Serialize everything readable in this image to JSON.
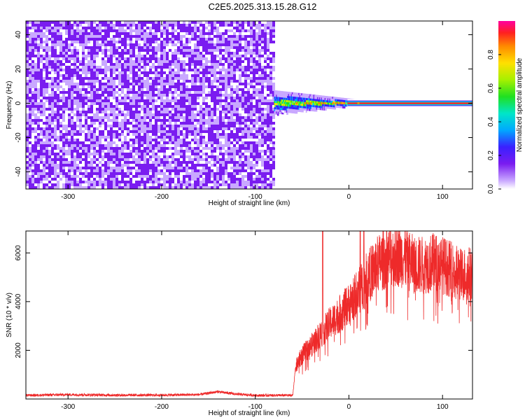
{
  "title": "C2E5.2025.313.15.28.G12",
  "colors": {
    "snr_line": "#ee2a2a",
    "frame": "#000000"
  },
  "chart_data": [
    {
      "type": "heatmap",
      "xlabel": "Height of straight line (km)",
      "ylabel": "Frequency (Hz)",
      "xlim": [
        -345,
        132
      ],
      "ylim": [
        -50,
        48
      ],
      "xticks": [
        -300,
        -200,
        -100,
        0,
        100
      ],
      "yticks": [
        -40,
        -20,
        0,
        20,
        40
      ],
      "colorbar": {
        "label": "Normalized spectral amplitude",
        "range": [
          0,
          1
        ],
        "ticks": [
          0.0,
          0.2,
          0.4,
          0.6,
          0.8
        ]
      },
      "regions": [
        {
          "x": [
            -345,
            -80
          ],
          "description_level": 0.12
        },
        {
          "x": [
            -80,
            15
          ],
          "description_level": 0.5
        },
        {
          "x": [
            0,
            132
          ],
          "y": 0,
          "description_level": 0.9
        }
      ]
    },
    {
      "type": "line",
      "xlabel": "Height of straight line (km)",
      "ylabel": "SNR (10 * v/v)",
      "xlim": [
        -345,
        132
      ],
      "ylim": [
        0,
        6900
      ],
      "xticks": [
        -300,
        -200,
        -100,
        0,
        100
      ],
      "yticks": [
        2000,
        4000,
        6000
      ],
      "series": [
        {
          "x": [
            -345,
            -300,
            -250,
            -200,
            -160,
            -140,
            -120,
            -100,
            -60,
            -57,
            -50,
            -40,
            -30,
            -20,
            -10,
            0,
            10,
            20,
            30,
            40,
            50,
            60,
            70,
            80,
            90,
            100,
            110,
            120,
            132
          ],
          "values": [
            150,
            180,
            160,
            160,
            180,
            300,
            200,
            150,
            150,
            1300,
            1800,
            2200,
            2700,
            3100,
            3500,
            3900,
            4400,
            5000,
            5500,
            5800,
            5900,
            5800,
            5500,
            5500,
            5600,
            5500,
            5300,
            5100,
            5200
          ]
        }
      ]
    }
  ]
}
